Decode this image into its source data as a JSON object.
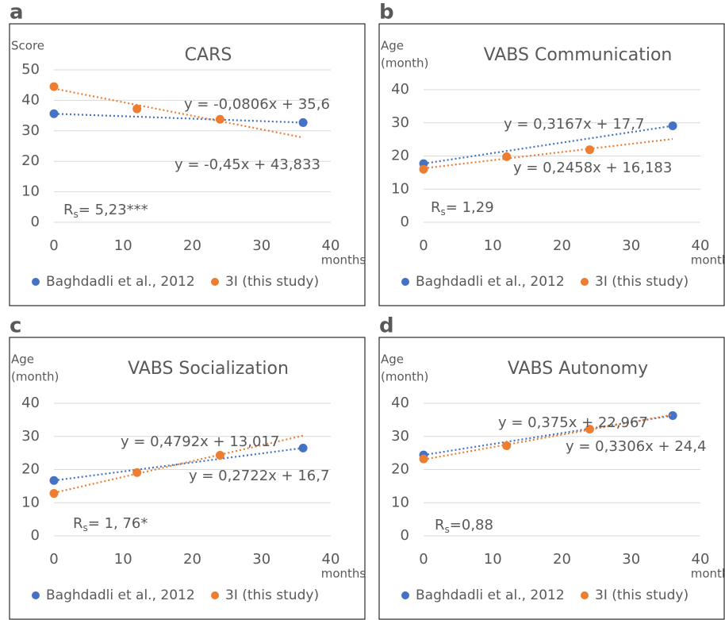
{
  "chart_data": [
    {
      "type": "scatter",
      "panel": "a",
      "title": "CARS",
      "ylabel": [
        "Score"
      ],
      "xlabel": "months",
      "xlim": [
        0,
        40
      ],
      "xticks": [
        0,
        10,
        20,
        30,
        40
      ],
      "ylim": [
        0,
        50
      ],
      "yticks": [
        0,
        10,
        20,
        30,
        40,
        50
      ],
      "grid": true,
      "series": [
        {
          "name": "Baghdadli et al., 2012",
          "color": "#4472c4",
          "x": [
            0,
            36
          ],
          "values": [
            35.6,
            32.7
          ],
          "trendline_label": "y = -0,0806x + 35,6"
        },
        {
          "name": "3I (this study)",
          "color": "#ed7d31",
          "x": [
            0,
            12,
            24
          ],
          "values": [
            44.5,
            37.2,
            33.8
          ],
          "trendline_label": "y = -0,45x + 43,833"
        }
      ],
      "stat": {
        "symbol": "R",
        "subscript": "s",
        "text": "= 5,23***"
      }
    },
    {
      "type": "scatter",
      "panel": "b",
      "title": "VABS Communication",
      "ylabel": [
        "Age",
        "(month)"
      ],
      "xlabel": "months",
      "xlim": [
        0,
        40
      ],
      "xticks": [
        0,
        10,
        20,
        30,
        40
      ],
      "ylim": [
        0,
        40
      ],
      "yticks": [
        0,
        10,
        20,
        30,
        40
      ],
      "grid": true,
      "series": [
        {
          "name": "Baghdadli et al., 2012",
          "color": "#4472c4",
          "x": [
            0,
            36
          ],
          "values": [
            17.7,
            29.1
          ],
          "trendline_label": "y = 0,3167x + 17,7"
        },
        {
          "name": "3I (this study)",
          "color": "#ed7d31",
          "x": [
            0,
            12,
            24
          ],
          "values": [
            16.0,
            19.8,
            21.9
          ],
          "trendline_label": "y = 0,2458x + 16,183"
        }
      ],
      "stat": {
        "symbol": "R",
        "subscript": "s",
        "text": "= 1,29"
      }
    },
    {
      "type": "scatter",
      "panel": "c",
      "title": "VABS Socialization",
      "ylabel": [
        "Age",
        "(month)"
      ],
      "xlabel": "months",
      "xlim": [
        0,
        40
      ],
      "xticks": [
        0,
        10,
        20,
        30,
        40
      ],
      "ylim": [
        0,
        40
      ],
      "yticks": [
        0,
        10,
        20,
        30,
        40
      ],
      "grid": true,
      "series": [
        {
          "name": "Baghdadli et al., 2012",
          "color": "#4472c4",
          "x": [
            0,
            36
          ],
          "values": [
            16.7,
            26.5
          ],
          "trendline_label": "y = 0,2722x + 16,7"
        },
        {
          "name": "3I (this study)",
          "color": "#ed7d31",
          "x": [
            0,
            12,
            24
          ],
          "values": [
            12.8,
            19.1,
            24.3
          ],
          "trendline_label": "y = 0,4792x + 13,017"
        }
      ],
      "stat": {
        "symbol": "R",
        "subscript": "s",
        "text": "= 1, 76*"
      }
    },
    {
      "type": "scatter",
      "panel": "d",
      "title": "VABS Autonomy",
      "ylabel": [
        "Age",
        "(month)"
      ],
      "xlabel": "months",
      "xlim": [
        0,
        40
      ],
      "xticks": [
        0,
        10,
        20,
        30,
        40
      ],
      "ylim": [
        0,
        40
      ],
      "yticks": [
        0,
        10,
        20,
        30,
        40
      ],
      "grid": true,
      "series": [
        {
          "name": "Baghdadli et al., 2012",
          "color": "#4472c4",
          "x": [
            0,
            36
          ],
          "values": [
            24.4,
            36.3
          ],
          "trendline_label": "y = 0,3306x + 24,4"
        },
        {
          "name": "3I (this study)",
          "color": "#ed7d31",
          "x": [
            0,
            12,
            24
          ],
          "values": [
            23.2,
            27.2,
            32.2
          ],
          "trendline_label": "y = 0,375x + 22,967"
        }
      ],
      "stat": {
        "symbol": "R",
        "subscript": "s",
        "text": "=0,88"
      }
    }
  ]
}
